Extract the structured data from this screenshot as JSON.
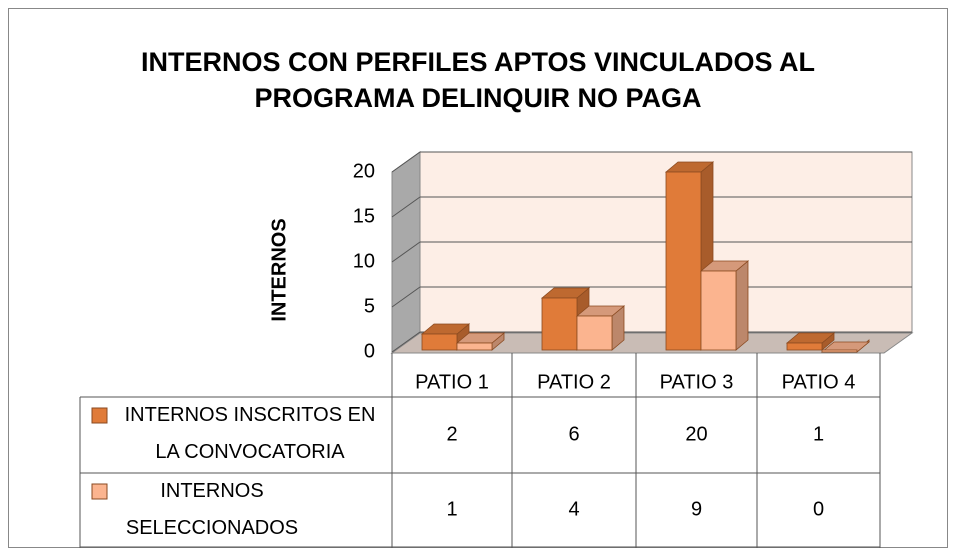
{
  "chart_data": {
    "type": "bar3d",
    "title": "INTERNOS CON PERFILES APTOS VINCULADOS AL PROGRAMA DELINQUIR NO PAGA",
    "y_label": "INTERNOS",
    "categories": [
      "PATIO 1",
      "PATIO 2",
      "PATIO 3",
      "PATIO 4"
    ],
    "series": [
      {
        "name": "INTERNOS INSCRITOS EN LA CONVOCATORIA",
        "color": "#e07b39",
        "values": [
          2,
          6,
          20,
          1
        ]
      },
      {
        "name": "INTERNOS SELECCIONADOS",
        "color": "#fbb48f",
        "values": [
          1,
          4,
          9,
          0
        ]
      }
    ],
    "ylim": [
      0,
      20
    ],
    "yticks": [
      0,
      5,
      10,
      15,
      20
    ],
    "grid": true,
    "data_table": true
  }
}
